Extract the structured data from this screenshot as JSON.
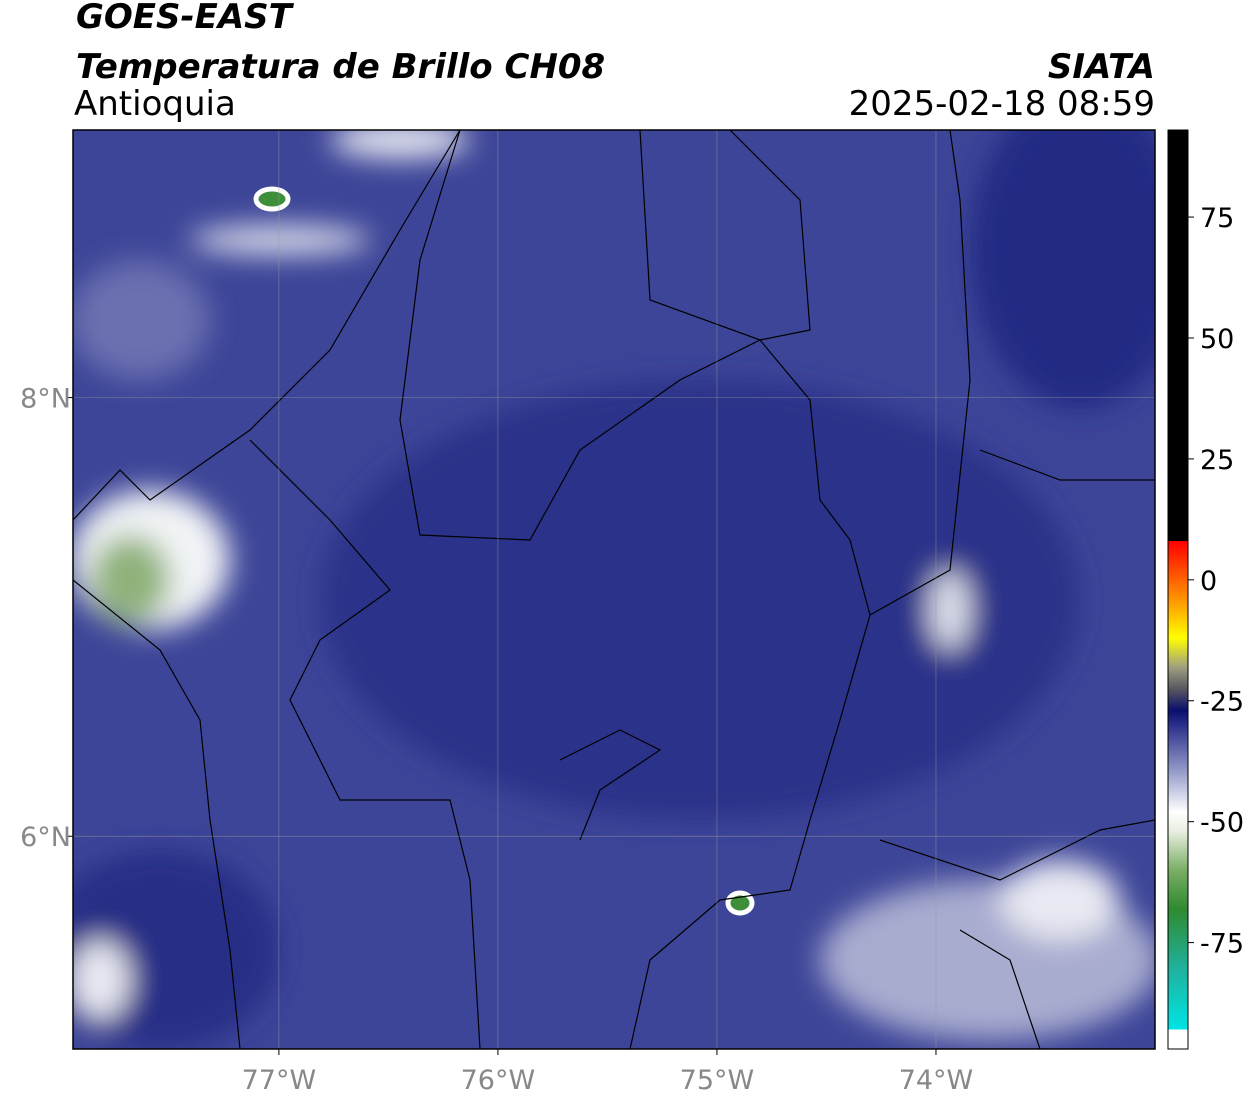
{
  "header": {
    "title": "GOES-EAST",
    "subtitle": "Temperatura de Brillo CH08",
    "region": "Antioquia",
    "source": "SIATA",
    "datetime": "2025-02-18 08:59"
  },
  "map": {
    "xlim": [
      -77.94,
      -73.0
    ],
    "ylim": [
      5.03,
      9.22
    ],
    "xticks": [
      {
        "value": -77,
        "label": "77°W"
      },
      {
        "value": -76,
        "label": "76°W"
      },
      {
        "value": -75,
        "label": "75°W"
      },
      {
        "value": -74,
        "label": "74°W"
      }
    ],
    "yticks": [
      {
        "value": 8,
        "label": "8°N"
      },
      {
        "value": 6,
        "label": "6°N"
      }
    ],
    "grid": true
  },
  "colorbar": {
    "lim": [
      -97,
      93
    ],
    "ticks": [
      75,
      50,
      25,
      0,
      -25,
      -50,
      -75
    ],
    "stops": [
      {
        "value": -97,
        "color": "#ffffff"
      },
      {
        "value": -93,
        "color": "#ffffff"
      },
      {
        "value": -93,
        "color": "#00e5e5"
      },
      {
        "value": -80,
        "color": "#20b09a"
      },
      {
        "value": -68,
        "color": "#2f8a2f"
      },
      {
        "value": -60,
        "color": "#7aae66"
      },
      {
        "value": -52,
        "color": "#e8efe0"
      },
      {
        "value": -48,
        "color": "#ffffff"
      },
      {
        "value": -40,
        "color": "#9aa0cc"
      },
      {
        "value": -30,
        "color": "#2a2f8a"
      },
      {
        "value": -27,
        "color": "#0a0f6e"
      },
      {
        "value": -23,
        "color": "#505060"
      },
      {
        "value": -18,
        "color": "#a0a080"
      },
      {
        "value": -12,
        "color": "#ffff00"
      },
      {
        "value": -5,
        "color": "#ffa000"
      },
      {
        "value": 8,
        "color": "#ff0000"
      },
      {
        "value": 8,
        "color": "#000000"
      },
      {
        "value": 93,
        "color": "#000000"
      }
    ]
  }
}
